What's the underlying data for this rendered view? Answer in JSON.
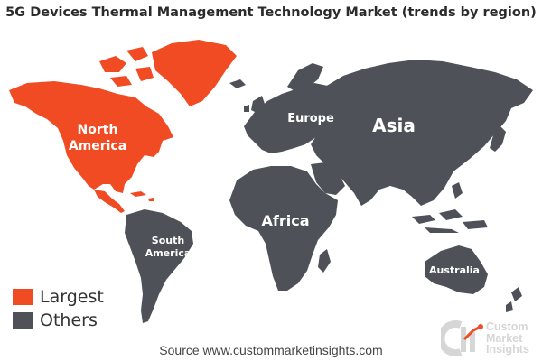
{
  "title": "5G Devices Thermal Management Technology Market (trends by region)",
  "colors": {
    "largest": "#f04b23",
    "others": "#4e5258",
    "logo_mark": "#d6d6d6",
    "logo_accent": "#f04b23"
  },
  "regions": [
    {
      "name": "North\nAmerica",
      "status": "Largest"
    },
    {
      "name": "Europe",
      "status": "Others"
    },
    {
      "name": "Asia",
      "status": "Others"
    },
    {
      "name": "Africa",
      "status": "Others"
    },
    {
      "name": "South\nAmerica",
      "status": "Others"
    },
    {
      "name": "Australia",
      "status": "Others"
    }
  ],
  "legend": [
    {
      "label": "Largest",
      "color": "#f04b23"
    },
    {
      "label": "Others",
      "color": "#4e5258"
    }
  ],
  "source": "Source www.custommarketinsights.com",
  "logo": {
    "mark": "CMI",
    "line1": "Custom",
    "line2": "Market",
    "line3": "Insights"
  }
}
